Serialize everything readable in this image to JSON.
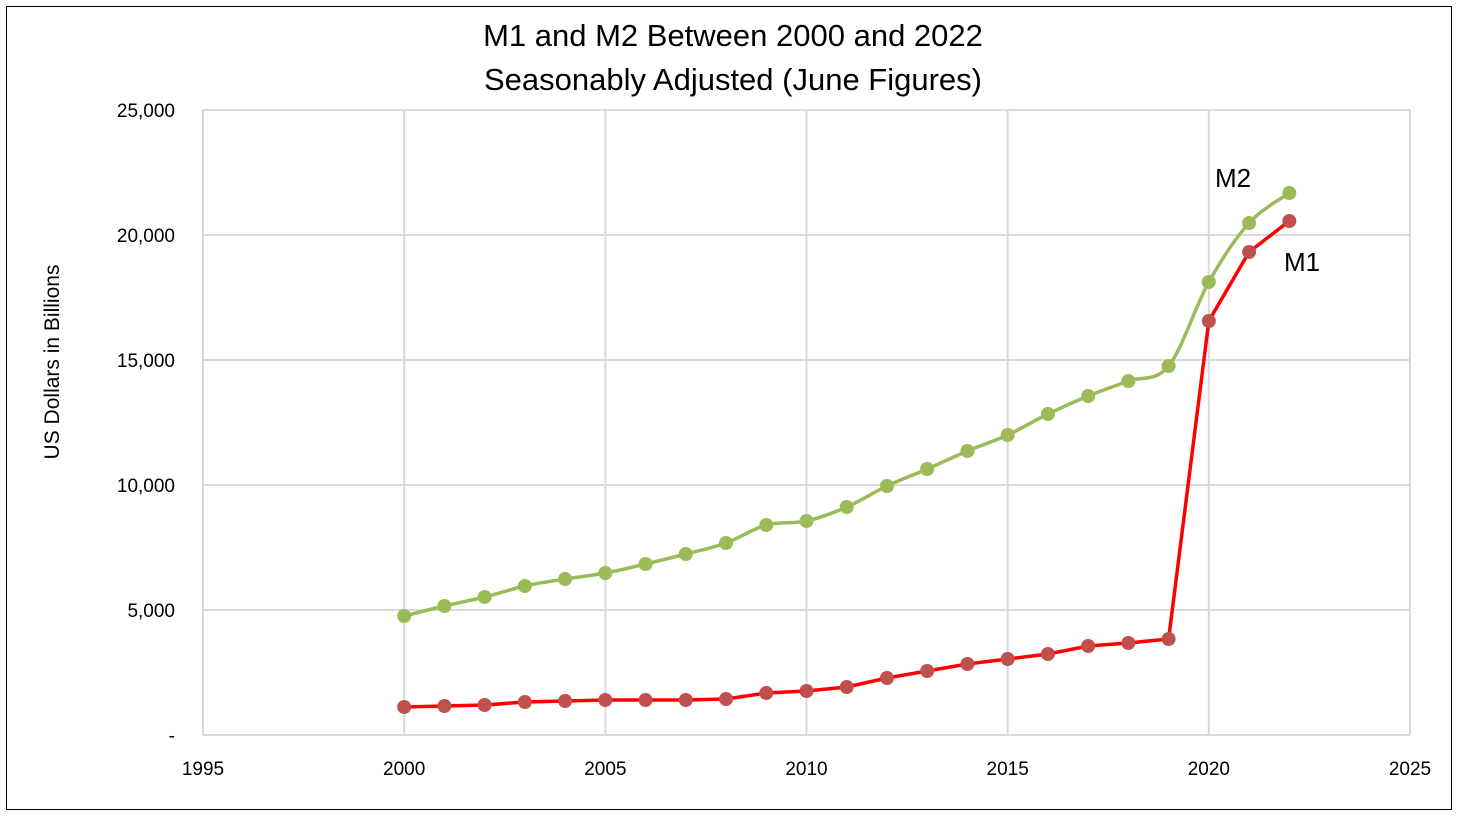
{
  "chart_data": {
    "type": "line",
    "title": "M1 and M2 Between 2000 and 2022",
    "subtitle": "Seasonably Adjusted (June Figures)",
    "xlabel": "",
    "ylabel": "US Dollars in Billions",
    "xlim": [
      1995,
      2025
    ],
    "ylim": [
      0,
      25000
    ],
    "x_ticks": [
      1995,
      2000,
      2005,
      2010,
      2015,
      2020,
      2025
    ],
    "y_ticks": [
      0,
      5000,
      10000,
      15000,
      20000,
      25000
    ],
    "y_tick_labels": [
      "-",
      "5,000",
      "10,000",
      "15,000",
      "20,000",
      "25,000"
    ],
    "grid": true,
    "legend": "none (series labeled inline)",
    "x": [
      2000,
      2001,
      2002,
      2003,
      2004,
      2005,
      2006,
      2007,
      2008,
      2009,
      2010,
      2011,
      2012,
      2013,
      2014,
      2015,
      2016,
      2017,
      2018,
      2019,
      2020,
      2021,
      2022
    ],
    "series": [
      {
        "name": "M2",
        "color": "#9BBB59",
        "marker_color": "#9BBB59",
        "smooth": true,
        "values": [
          4760,
          5160,
          5520,
          5960,
          6240,
          6480,
          6840,
          7240,
          7680,
          8400,
          8560,
          9120,
          9960,
          10640,
          11360,
          12000,
          12840,
          13560,
          14160,
          14760,
          18120,
          20480,
          21680
        ]
      },
      {
        "name": "M1",
        "color": "#FF0000",
        "marker_color": "#C0504D",
        "smooth": false,
        "values": [
          1120,
          1160,
          1200,
          1320,
          1360,
          1400,
          1400,
          1400,
          1440,
          1680,
          1760,
          1920,
          2280,
          2560,
          2840,
          3040,
          3240,
          3560,
          3680,
          3840,
          16560,
          19320,
          20560
        ]
      }
    ]
  }
}
